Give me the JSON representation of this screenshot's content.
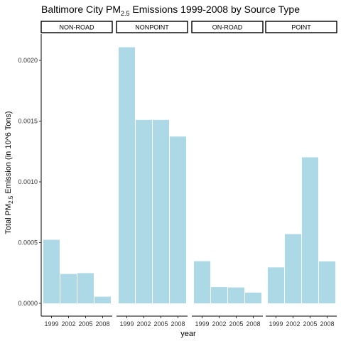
{
  "chart_data": {
    "type": "bar",
    "title_pre": "Baltimore City PM",
    "title_sub": "2.5",
    "title_post": " Emissions 1999-2008 by Source Type",
    "xlabel": "year",
    "ylabel_pre": "Total PM",
    "ylabel_sub": "2.5",
    "ylabel_post": " Emission (in 10^6 Tons)",
    "ylim": [
      -0.0001,
      0.00214
    ],
    "yticks": [
      0,
      0.0005,
      0.001,
      0.0015,
      0.002
    ],
    "ytick_labels": [
      "0.0000",
      "0.0005",
      "0.0010",
      "0.0015",
      "0.0020"
    ],
    "categories": [
      "1999",
      "2002",
      "2005",
      "2008"
    ],
    "bar_color": "#add8e6",
    "facets": [
      {
        "name": "NON-ROAD",
        "values": [
          0.000523,
          0.000242,
          0.000249,
          5.5e-05
        ]
      },
      {
        "name": "NONPOINT",
        "values": [
          0.002108,
          0.00151,
          0.00151,
          0.001373
        ]
      },
      {
        "name": "ON-ROAD",
        "values": [
          0.000347,
          0.000134,
          0.000131,
          8.9e-05
        ]
      },
      {
        "name": "POINT",
        "values": [
          0.000296,
          0.00057,
          0.001202,
          0.000345
        ]
      }
    ]
  }
}
